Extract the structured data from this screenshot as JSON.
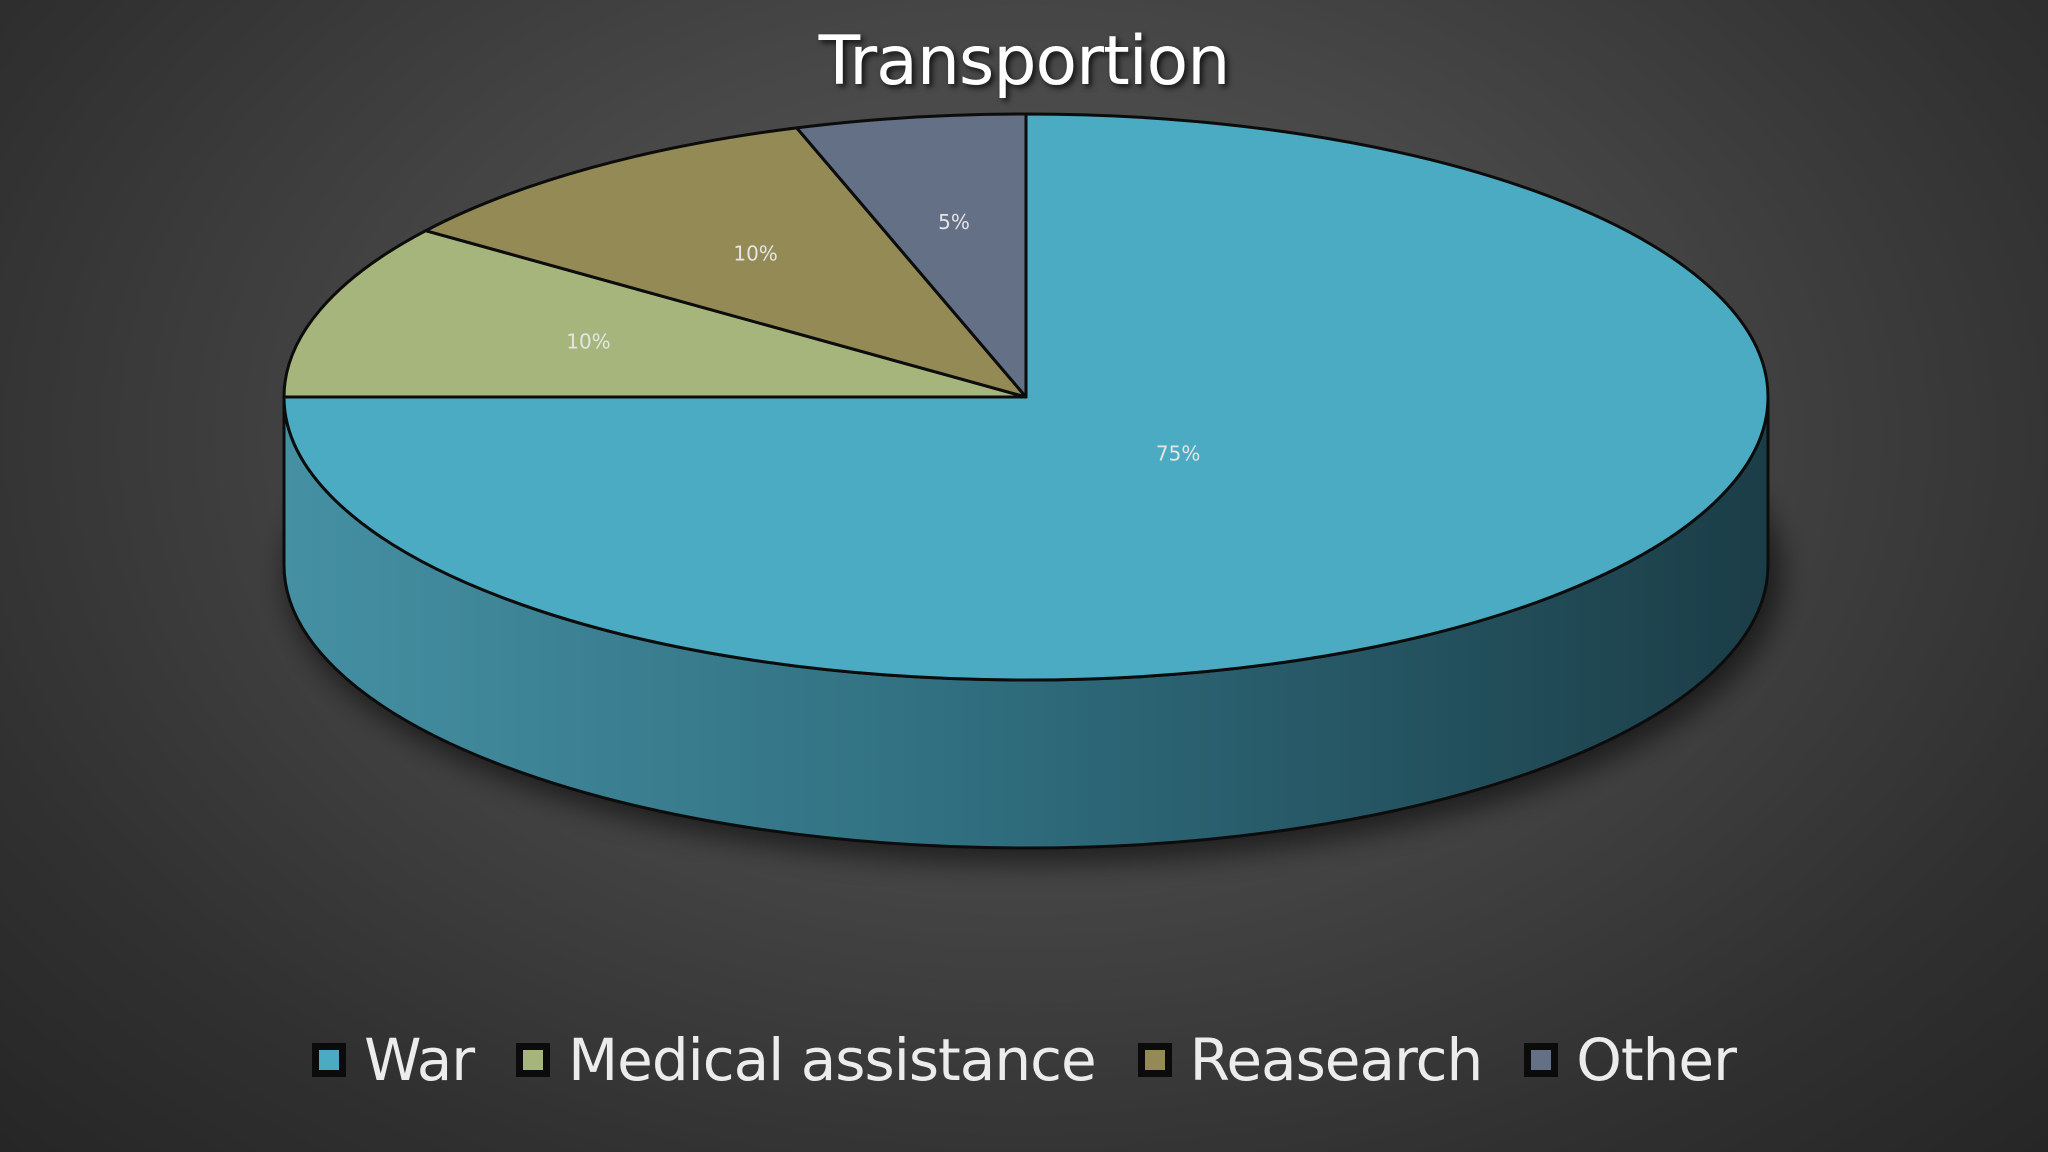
{
  "chart_data": {
    "type": "pie",
    "title": "Transportion",
    "categories": [
      "War",
      "Medical assistance",
      "Reasearch",
      "Other"
    ],
    "values": [
      75,
      10,
      10,
      5
    ],
    "data_labels": [
      "75%",
      "10%",
      "10%",
      "5%"
    ],
    "colors": [
      "#4aabc2",
      "#a6b57b",
      "#948a55",
      "#637085"
    ],
    "legend_position": "bottom",
    "style": "3d"
  }
}
